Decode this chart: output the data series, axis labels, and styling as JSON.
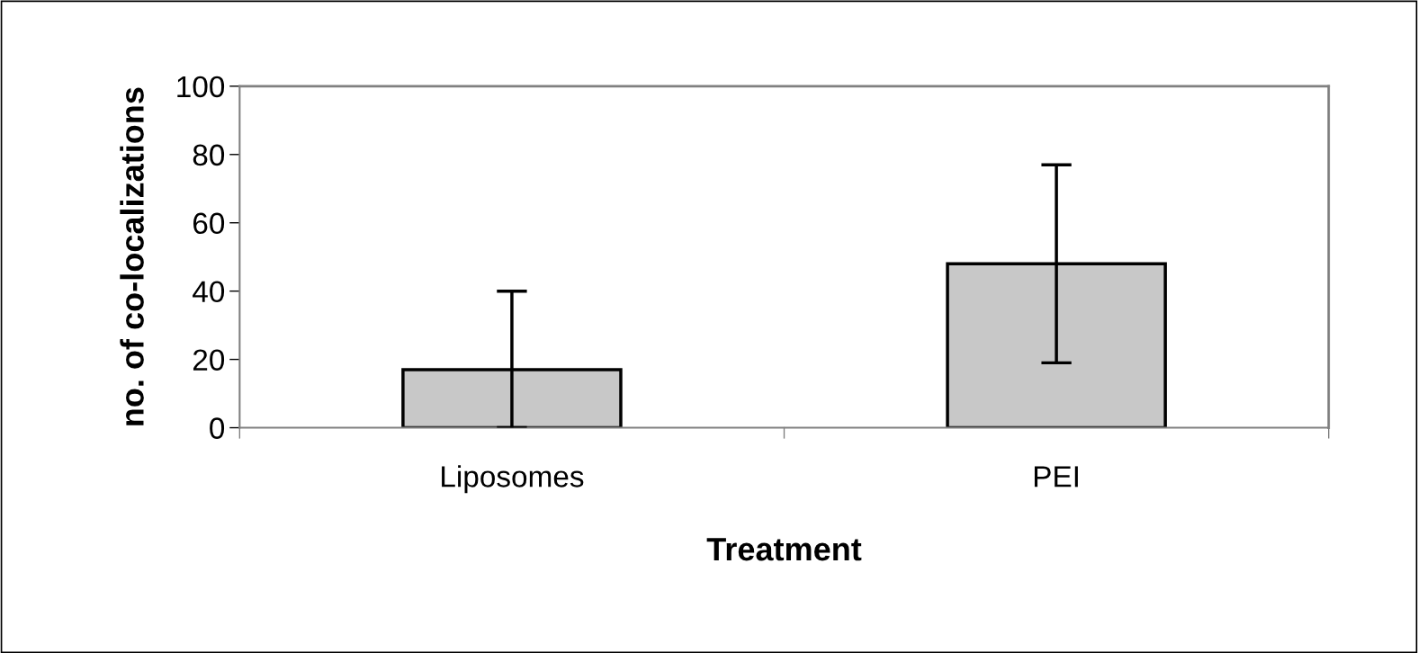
{
  "chart_data": {
    "type": "bar",
    "xlabel": "Treatment",
    "ylabel": "no. of co-localizations",
    "categories": [
      "Liposomes",
      "PEI"
    ],
    "values": [
      17,
      48
    ],
    "errors": [
      [
        0,
        40
      ],
      [
        19,
        77
      ]
    ],
    "color": "#c8c8c8",
    "ylim": [
      0,
      100
    ],
    "yticks": [
      0,
      20,
      40,
      60,
      80,
      100
    ],
    "grid": false,
    "legend": false
  }
}
